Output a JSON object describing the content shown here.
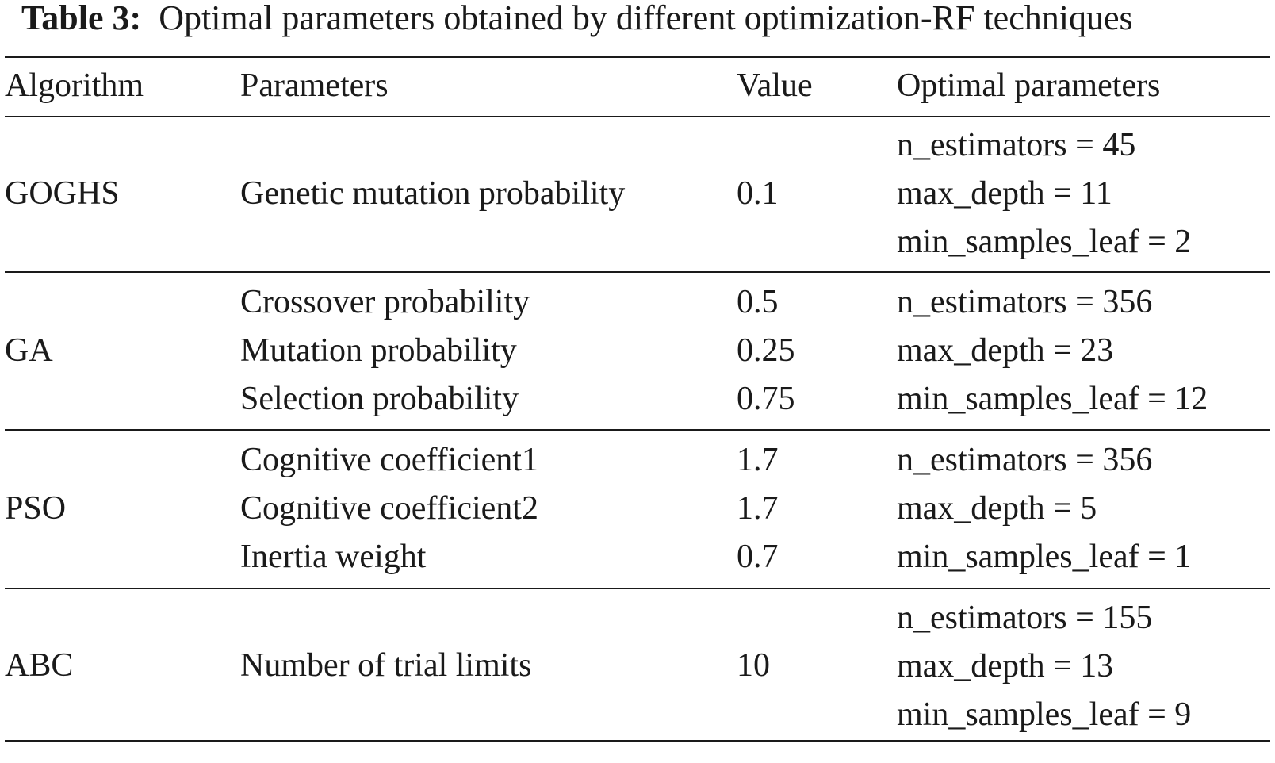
{
  "caption": {
    "label": "Table 3:",
    "text": "Optimal parameters obtained by different optimization-RF techniques"
  },
  "headers": {
    "algorithm": "Algorithm",
    "parameters": "Parameters",
    "value": "Value",
    "optimal": "Optimal parameters"
  },
  "rows": [
    {
      "algorithm": "GOGHS",
      "parameters": [
        "Genetic mutation probability"
      ],
      "values": [
        "0.1"
      ],
      "optimal": [
        "n_estimators = 45",
        "max_depth = 11",
        "min_samples_leaf = 2"
      ]
    },
    {
      "algorithm": "GA",
      "parameters": [
        "Crossover probability",
        "Mutation probability",
        "Selection probability"
      ],
      "values": [
        "0.5",
        "0.25",
        "0.75"
      ],
      "optimal": [
        "n_estimators = 356",
        "max_depth = 23",
        "min_samples_leaf = 12"
      ]
    },
    {
      "algorithm": "PSO",
      "parameters": [
        "Cognitive coefficient1",
        "Cognitive coefficient2",
        "Inertia weight"
      ],
      "values": [
        "1.7",
        "1.7",
        "0.7"
      ],
      "optimal": [
        "n_estimators = 356",
        "max_depth = 5",
        "min_samples_leaf = 1"
      ]
    },
    {
      "algorithm": "ABC",
      "parameters": [
        "Number of trial limits"
      ],
      "values": [
        "10"
      ],
      "optimal": [
        "n_estimators = 155",
        "max_depth = 13",
        "min_samples_leaf = 9"
      ]
    }
  ]
}
